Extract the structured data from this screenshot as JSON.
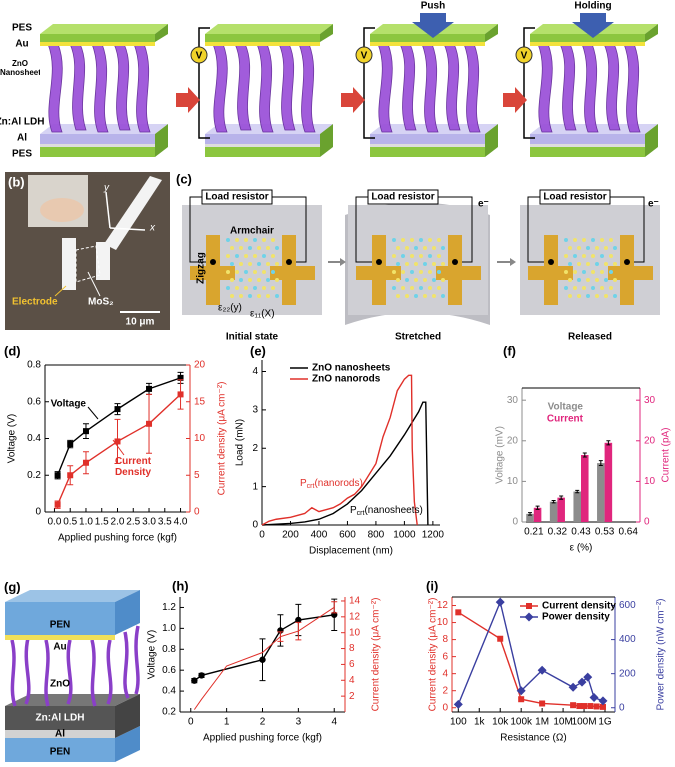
{
  "panel_a": {
    "layers": {
      "pes_top": "PES",
      "au": "Au",
      "zno": "ZnO Nanosheet",
      "ldh": "Zn:Al LDH",
      "al": "Al",
      "pes_bottom": "PES"
    },
    "meter": "V",
    "push": "Push",
    "holding": "Holding"
  },
  "panel_b": {
    "label": "(b)",
    "axis_y": "y",
    "axis_x": "x",
    "electrode": "Electrode",
    "mos2": "MoS₂",
    "scale": "10 μm"
  },
  "panel_c": {
    "label": "(c)",
    "load_resistor": "Load resistor",
    "armchair": "Armchair",
    "zigzag": "Zigzag",
    "electron": "e⁻",
    "strain_y": "ε₂₂(y)",
    "strain_x": "ε₁₁(X)",
    "states": [
      "Initial state",
      "Stretched",
      "Released"
    ]
  },
  "panel_g": {
    "label": "(g)",
    "layers": [
      "PEN",
      "Au",
      "ZnO",
      "Zn:Al LDH",
      "Al",
      "PEN"
    ]
  },
  "chart_data": [
    {
      "type": "line",
      "label": "(d)",
      "xlabel": "Applied pushing force (kgf)",
      "ylabel": "Voltage (V)",
      "y2label": "Current density (μA cm⁻²)",
      "xlim": [
        -0.3,
        4.3
      ],
      "xticks": [
        {
          "value": 0,
          "label": "0.0"
        },
        0.5,
        {
          "value": 1,
          "label": "1.0"
        },
        1.5,
        {
          "value": 2,
          "label": "2.0"
        },
        2.5,
        {
          "value": 3,
          "label": "3.0"
        },
        3.5,
        {
          "value": 4,
          "label": "4.0"
        }
      ],
      "ylim": [
        0,
        0.8
      ],
      "yticks": [
        0,
        0.2,
        0.4,
        0.6,
        0.8
      ],
      "y2lim": [
        0,
        20
      ],
      "y2ticks": [
        0,
        5,
        10,
        15,
        20
      ],
      "series": [
        {
          "name": "Voltage",
          "color": "#000000",
          "marker": "square",
          "x": [
            0.1,
            0.5,
            1,
            2,
            3,
            4
          ],
          "values": [
            0.2,
            0.37,
            0.44,
            0.56,
            0.67,
            0.73
          ],
          "errors": [
            0.02,
            0.02,
            0.04,
            0.03,
            0.03,
            0.03
          ]
        },
        {
          "name": "Current Density",
          "color": "#e0302a",
          "marker": "square",
          "axis": "y2",
          "x": [
            0.1,
            0.5,
            1,
            2,
            3,
            4
          ],
          "values": [
            1,
            5,
            6.7,
            9.6,
            12,
            16
          ],
          "errors": [
            0.5,
            1.3,
            1.5,
            3,
            4,
            2
          ]
        }
      ]
    },
    {
      "type": "line",
      "label": "(e)",
      "xlabel": "Displacement (nm)",
      "ylabel": "Load (mN)",
      "xlim": [
        0,
        1250
      ],
      "xticks": [
        0,
        200,
        400,
        600,
        800,
        1000,
        1200
      ],
      "ylim": [
        0,
        4.3
      ],
      "yticks": [
        0,
        1,
        2,
        3,
        4
      ],
      "legend": "upper left",
      "series": [
        {
          "name": "ZnO nanosheets",
          "color": "#000000",
          "x": [
            0,
            100,
            200,
            300,
            400,
            500,
            600,
            700,
            800,
            900,
            1000,
            1100,
            1130,
            1150,
            1165
          ],
          "values": [
            0,
            0.02,
            0.04,
            0.08,
            0.15,
            0.3,
            0.55,
            0.9,
            1.35,
            1.8,
            2.35,
            2.95,
            3.2,
            3.2,
            0
          ]
        },
        {
          "name": "ZnO nanorods",
          "color": "#e0302a",
          "x": [
            0,
            50,
            100,
            200,
            300,
            350,
            400,
            500,
            550,
            600,
            650,
            700,
            800,
            850,
            900,
            950,
            1000,
            1030,
            1050,
            1055,
            1070,
            1090
          ],
          "values": [
            0,
            0.1,
            0.15,
            0.2,
            0.3,
            0.45,
            0.35,
            0.45,
            0.55,
            0.7,
            0.8,
            1.0,
            1.6,
            2.3,
            2.8,
            3.5,
            3.8,
            3.9,
            3.9,
            2.0,
            0.6,
            0
          ]
        }
      ],
      "annotations": [
        {
          "text": [
            "P",
            "crt",
            "(nanorods)"
          ],
          "color": "#e0302a"
        },
        {
          "text": [
            "P",
            "crt",
            "(nanosheets)"
          ],
          "color": "#000000"
        }
      ]
    },
    {
      "type": "bar",
      "label": "(f)",
      "xlabel": "ε (%)",
      "ylabel": "Voltage (mV)",
      "y2label": "Current (pA)",
      "categories": [
        "0.21",
        "0.32",
        "0.43",
        "0.53",
        "0.64"
      ],
      "ylim": [
        0,
        33
      ],
      "yticks": [
        0,
        10,
        20,
        30
      ],
      "y2lim": [
        0,
        33
      ],
      "y2ticks": [
        0,
        10,
        20,
        30
      ],
      "legend": "upper left",
      "series": [
        {
          "name": "Voltage",
          "color": "#8c8c8c",
          "values": [
            2,
            5,
            7.5,
            14.5,
            null
          ],
          "errors": [
            0.3,
            0.3,
            0.3,
            0.6,
            null
          ]
        },
        {
          "name": "Current",
          "color": "#e0267d",
          "axis": "y2",
          "values": [
            3.5,
            6,
            16.5,
            19.5,
            null
          ],
          "errors": [
            0.4,
            0.4,
            0.5,
            0.5,
            null
          ]
        }
      ]
    },
    {
      "type": "line",
      "label": "(h)",
      "xlabel": "Applied pushing force (kgf)",
      "ylabel": "Voltage (V)",
      "y2label": "Current density (μA cm⁻²)",
      "xlim": [
        -0.3,
        4.3
      ],
      "xticks": [
        0,
        1,
        2,
        3,
        4
      ],
      "ylim": [
        0.2,
        1.3
      ],
      "yticks": [
        0.2,
        0.4,
        0.6,
        0.8,
        {
          "value": 1,
          "label": "1.0"
        },
        1.2
      ],
      "y2lim": [
        0,
        14.5
      ],
      "y2ticks": [
        2,
        4,
        6,
        8,
        10,
        12,
        14
      ],
      "series": [
        {
          "color": "#000000",
          "marker": "circle",
          "x": [
            0.1,
            0.3,
            2,
            2.5,
            3,
            4
          ],
          "values": [
            0.5,
            0.55,
            0.7,
            0.98,
            1.08,
            1.13
          ],
          "errors": [
            0.02,
            0.02,
            0.2,
            0.15,
            0.15,
            0.15
          ]
        },
        {
          "color": "#e0302a",
          "axis": "y2",
          "x": [
            0.1,
            0.3,
            1,
            2,
            2.5,
            3,
            4
          ],
          "values": [
            0.3,
            1.6,
            5.8,
            7.5,
            9.5,
            10.2,
            13.2
          ],
          "errors": [
            null,
            null,
            null,
            null,
            0.6,
            1.1,
            0.7
          ]
        }
      ]
    },
    {
      "type": "line",
      "label": "(i)",
      "xlabel": "Resistance (Ω)",
      "ylabel": "Current density (μA cm⁻²)",
      "y2label": "Power density (nW cm⁻²)",
      "xscale": "log",
      "xlim": [
        50,
        3000000000
      ],
      "xticks": [
        100,
        {
          "value": 1000,
          "label": "1k"
        },
        {
          "value": 10000,
          "label": "10k"
        },
        {
          "value": 100000,
          "label": "100k"
        },
        {
          "value": 1000000,
          "label": "1M"
        },
        {
          "value": 10000000,
          "label": "10M"
        },
        {
          "value": 100000000,
          "label": "100M"
        },
        {
          "value": 1000000000,
          "label": "1G"
        }
      ],
      "ylim": [
        -0.5,
        13
      ],
      "yticks": [
        0,
        2,
        4,
        6,
        8,
        10,
        12
      ],
      "y2lim": [
        -25,
        650
      ],
      "y2ticks": [
        0,
        200,
        400,
        600
      ],
      "legend": "upper right",
      "series": [
        {
          "name": "Current density",
          "color": "#e0302a",
          "marker": "square",
          "x": [
            100,
            10000,
            100000,
            1000000,
            30000000,
            60000000,
            100000000,
            200000000,
            400000000,
            800000000
          ],
          "values": [
            11.2,
            8.1,
            1.0,
            0.5,
            0.3,
            0.2,
            0.2,
            0.2,
            0.15,
            0.1
          ]
        },
        {
          "name": "Power density",
          "color": "#3a3fa0",
          "marker": "diamond",
          "axis": "y2",
          "x": [
            100,
            10000,
            100000,
            1000000,
            30000000,
            80000000,
            150000000,
            300000000,
            800000000
          ],
          "values": [
            20,
            620,
            100,
            220,
            120,
            150,
            180,
            60,
            40
          ]
        }
      ]
    }
  ]
}
